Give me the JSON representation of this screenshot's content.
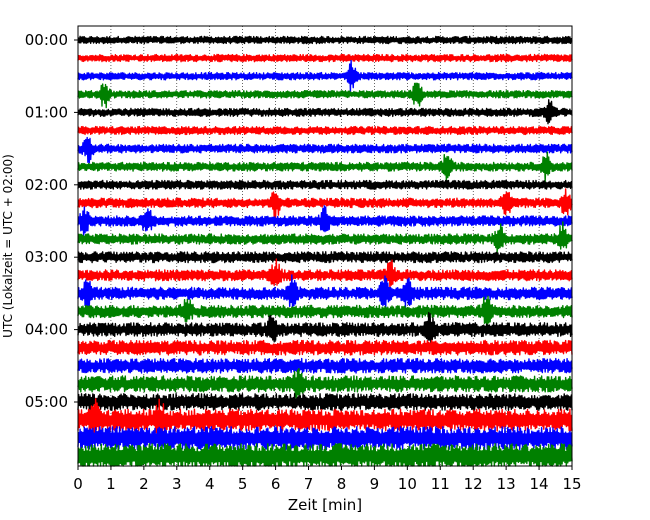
{
  "chart_data": {
    "type": "line",
    "title": "",
    "xlabel": "Zeit  [min]",
    "ylabel": "UTC (Lokalzeit = UTC + 02:00)",
    "xlim": [
      0,
      15
    ],
    "x_ticks": [
      "0",
      "1",
      "2",
      "3",
      "4",
      "5",
      "6",
      "7",
      "8",
      "9",
      "10",
      "11",
      "12",
      "13",
      "14",
      "15"
    ],
    "y_tick_labels": [
      "00:00",
      "01:00",
      "02:00",
      "03:00",
      "04:00",
      "05:00"
    ],
    "y_tick_rows": [
      0,
      4,
      8,
      12,
      16,
      20
    ],
    "grid": "vertical dotted lines every 1 min",
    "trace_colors": [
      "#000000",
      "#ff0000",
      "#0000ff",
      "#008000"
    ],
    "rows_per_hour": 4,
    "minutes_per_row": 15,
    "series": [
      {
        "row": 0,
        "time": "00:00",
        "color": "#000000",
        "amplitude": 0.2
      },
      {
        "row": 1,
        "time": "00:15",
        "color": "#ff0000",
        "amplitude": 0.2
      },
      {
        "row": 2,
        "time": "00:30",
        "color": "#0000ff",
        "amplitude": 0.2,
        "events": [
          8.3
        ]
      },
      {
        "row": 3,
        "time": "00:45",
        "color": "#008000",
        "amplitude": 0.2,
        "events": [
          0.8,
          10.3
        ]
      },
      {
        "row": 4,
        "time": "01:00",
        "color": "#000000",
        "amplitude": 0.22,
        "events": [
          14.3
        ]
      },
      {
        "row": 5,
        "time": "01:15",
        "color": "#ff0000",
        "amplitude": 0.22
      },
      {
        "row": 6,
        "time": "01:30",
        "color": "#0000ff",
        "amplitude": 0.24,
        "events": [
          0.3
        ]
      },
      {
        "row": 7,
        "time": "01:45",
        "color": "#008000",
        "amplitude": 0.24,
        "events": [
          11.2,
          14.2
        ]
      },
      {
        "row": 8,
        "time": "02:00",
        "color": "#000000",
        "amplitude": 0.24
      },
      {
        "row": 9,
        "time": "02:15",
        "color": "#ff0000",
        "amplitude": 0.26,
        "events": [
          6.0,
          13.0,
          14.8
        ]
      },
      {
        "row": 10,
        "time": "02:30",
        "color": "#0000ff",
        "amplitude": 0.28,
        "events": [
          0.2,
          2.1,
          7.5
        ]
      },
      {
        "row": 11,
        "time": "02:45",
        "color": "#008000",
        "amplitude": 0.28,
        "events": [
          12.8,
          14.7
        ]
      },
      {
        "row": 12,
        "time": "03:00",
        "color": "#000000",
        "amplitude": 0.3
      },
      {
        "row": 13,
        "time": "03:15",
        "color": "#ff0000",
        "amplitude": 0.3,
        "events": [
          6.0,
          9.5
        ]
      },
      {
        "row": 14,
        "time": "03:30",
        "color": "#0000ff",
        "amplitude": 0.34,
        "events": [
          0.3,
          6.5,
          9.3,
          10.0
        ]
      },
      {
        "row": 15,
        "time": "03:45",
        "color": "#008000",
        "amplitude": 0.34,
        "events": [
          3.3,
          12.4
        ]
      },
      {
        "row": 16,
        "time": "04:00",
        "color": "#000000",
        "amplitude": 0.38,
        "events": [
          5.9,
          10.7
        ]
      },
      {
        "row": 17,
        "time": "04:15",
        "color": "#ff0000",
        "amplitude": 0.4
      },
      {
        "row": 18,
        "time": "04:30",
        "color": "#0000ff",
        "amplitude": 0.4
      },
      {
        "row": 19,
        "time": "04:45",
        "color": "#008000",
        "amplitude": 0.44,
        "events": [
          6.7
        ]
      },
      {
        "row": 20,
        "time": "05:00",
        "color": "#000000",
        "amplitude": 0.46
      },
      {
        "row": 21,
        "time": "05:15",
        "color": "#ff0000",
        "amplitude": 0.6,
        "events": [
          0.5,
          2.5
        ]
      },
      {
        "row": 22,
        "time": "05:30",
        "color": "#0000ff",
        "amplitude": 0.64
      },
      {
        "row": 23,
        "time": "05:45",
        "color": "#008000",
        "amplitude": 0.7
      }
    ]
  }
}
